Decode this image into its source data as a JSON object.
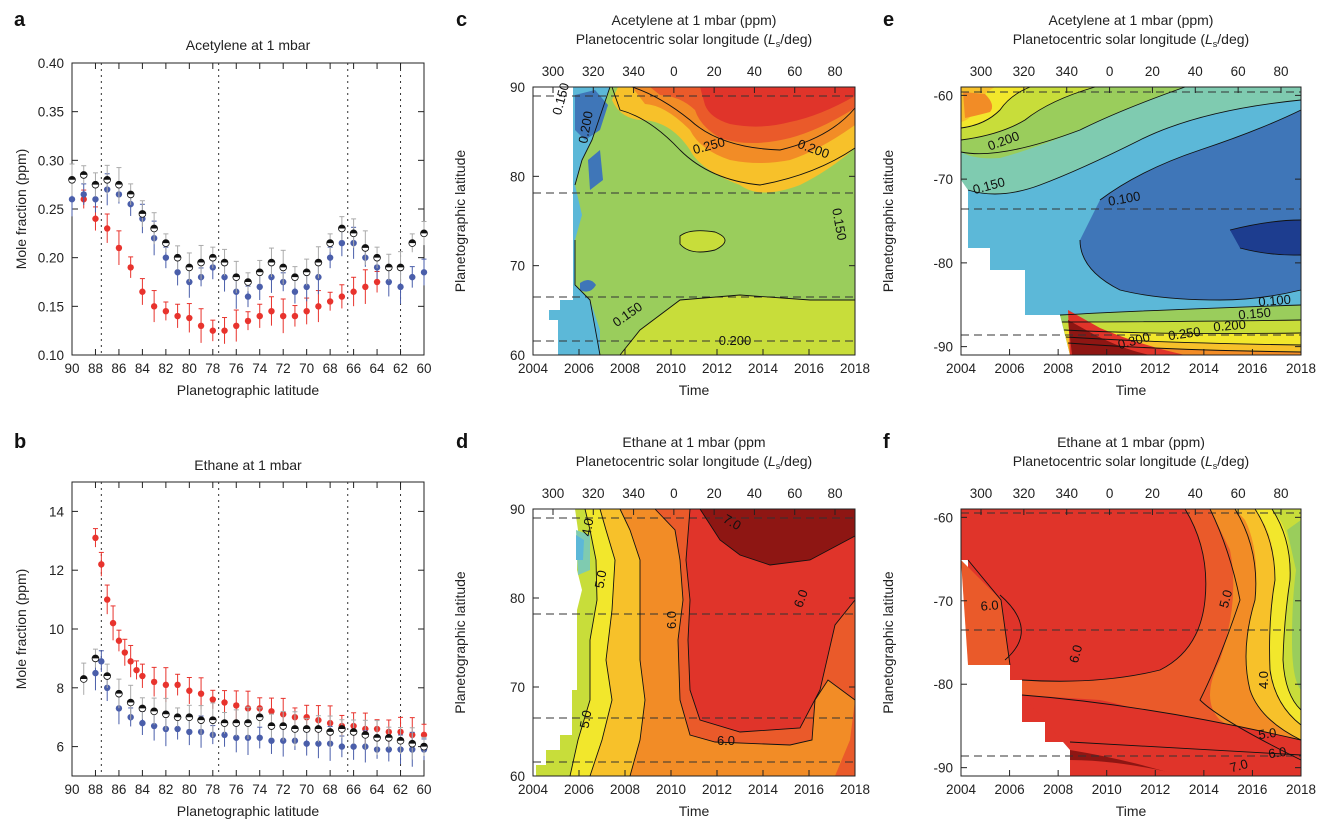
{
  "chart_data": [
    {
      "id": "a",
      "type": "scatter",
      "title": "Acetylene at 1 mbar",
      "xlabel": "Planetographic latitude",
      "ylabel": "Mole fraction (ppm)",
      "xlim": [
        90,
        60
      ],
      "ylim": [
        0.1,
        0.4
      ],
      "x_ticks": [
        "90",
        "88",
        "86",
        "84",
        "82",
        "80",
        "78",
        "76",
        "74",
        "72",
        "70",
        "68",
        "66",
        "64",
        "62",
        "60"
      ],
      "y_ticks": [
        "0.10",
        "0.15",
        "0.20",
        "0.25",
        "0.30",
        "0.35",
        "0.40"
      ],
      "vlines": [
        87.5,
        77.5,
        66.5,
        62
      ],
      "series": [
        {
          "color": "#e8332d",
          "err_color": "#e8332d",
          "marker": "circle",
          "points": [
            [
              89.0,
              0.26
            ],
            [
              88.0,
              0.24
            ],
            [
              87.0,
              0.23
            ],
            [
              86.0,
              0.21
            ],
            [
              85.0,
              0.19
            ],
            [
              84.0,
              0.165
            ],
            [
              83.0,
              0.15
            ],
            [
              82.0,
              0.145
            ],
            [
              81.0,
              0.14
            ],
            [
              80.0,
              0.138
            ],
            [
              79.0,
              0.13
            ],
            [
              78.0,
              0.125
            ],
            [
              77.0,
              0.125
            ],
            [
              76.0,
              0.13
            ],
            [
              75.0,
              0.135
            ],
            [
              74.0,
              0.14
            ],
            [
              73.0,
              0.145
            ],
            [
              72.0,
              0.14
            ],
            [
              71.0,
              0.14
            ],
            [
              70.0,
              0.145
            ],
            [
              69.0,
              0.15
            ],
            [
              68.0,
              0.155
            ],
            [
              67.0,
              0.16
            ],
            [
              66.0,
              0.165
            ],
            [
              65.0,
              0.17
            ],
            [
              64.0,
              0.175
            ]
          ]
        },
        {
          "color": "#4a5eaa",
          "err_color": "#4a5eaa",
          "marker": "circle",
          "points": [
            [
              90.0,
              0.26
            ],
            [
              89.0,
              0.265
            ],
            [
              88.0,
              0.26
            ],
            [
              87.0,
              0.27
            ],
            [
              86.0,
              0.265
            ],
            [
              85.0,
              0.255
            ],
            [
              84.0,
              0.24
            ],
            [
              83.0,
              0.22
            ],
            [
              82.0,
              0.2
            ],
            [
              81.0,
              0.185
            ],
            [
              80.0,
              0.175
            ],
            [
              79.0,
              0.18
            ],
            [
              78.0,
              0.19
            ],
            [
              77.0,
              0.18
            ],
            [
              76.0,
              0.165
            ],
            [
              75.0,
              0.16
            ],
            [
              74.0,
              0.17
            ],
            [
              73.0,
              0.18
            ],
            [
              72.0,
              0.175
            ],
            [
              71.0,
              0.165
            ],
            [
              70.0,
              0.17
            ],
            [
              69.0,
              0.18
            ],
            [
              68.0,
              0.2
            ],
            [
              67.0,
              0.215
            ],
            [
              66.0,
              0.215
            ],
            [
              65.0,
              0.2
            ],
            [
              64.0,
              0.19
            ],
            [
              63.0,
              0.175
            ],
            [
              62.0,
              0.17
            ],
            [
              61.0,
              0.18
            ],
            [
              60.0,
              0.185
            ]
          ]
        },
        {
          "color": "#111111",
          "err_color": "#aaaaaa",
          "marker": "half-circle",
          "points": [
            [
              90.0,
              0.28
            ],
            [
              89.0,
              0.285
            ],
            [
              88.0,
              0.275
            ],
            [
              87.0,
              0.28
            ],
            [
              86.0,
              0.275
            ],
            [
              85.0,
              0.265
            ],
            [
              84.0,
              0.245
            ],
            [
              83.0,
              0.23
            ],
            [
              82.0,
              0.215
            ],
            [
              81.0,
              0.2
            ],
            [
              80.0,
              0.19
            ],
            [
              79.0,
              0.195
            ],
            [
              78.0,
              0.2
            ],
            [
              77.0,
              0.195
            ],
            [
              76.0,
              0.18
            ],
            [
              75.0,
              0.175
            ],
            [
              74.0,
              0.185
            ],
            [
              73.0,
              0.195
            ],
            [
              72.0,
              0.19
            ],
            [
              71.0,
              0.18
            ],
            [
              70.0,
              0.185
            ],
            [
              69.0,
              0.195
            ],
            [
              68.0,
              0.215
            ],
            [
              67.0,
              0.23
            ],
            [
              66.0,
              0.225
            ],
            [
              65.0,
              0.21
            ],
            [
              64.0,
              0.2
            ],
            [
              63.0,
              0.19
            ],
            [
              62.0,
              0.19
            ],
            [
              61.0,
              0.215
            ],
            [
              60.0,
              0.225
            ]
          ]
        }
      ]
    },
    {
      "id": "b",
      "type": "scatter",
      "title": "Ethane at 1 mbar",
      "xlabel": "Planetographic latitude",
      "ylabel": "Mole fraction (ppm)",
      "xlim": [
        90,
        60
      ],
      "ylim": [
        5,
        15
      ],
      "x_ticks": [
        "90",
        "88",
        "86",
        "84",
        "82",
        "80",
        "78",
        "76",
        "74",
        "72",
        "70",
        "68",
        "66",
        "64",
        "62",
        "60"
      ],
      "y_ticks": [
        "6",
        "8",
        "10",
        "12",
        "14"
      ],
      "vlines": [
        87.5,
        77.5,
        66.5,
        62
      ],
      "series": [
        {
          "color": "#e8332d",
          "err_color": "#e8332d",
          "marker": "circle",
          "points": [
            [
              88.0,
              13.1
            ],
            [
              87.5,
              12.2
            ],
            [
              87.0,
              11.0
            ],
            [
              86.5,
              10.2
            ],
            [
              86.0,
              9.6
            ],
            [
              85.5,
              9.2
            ],
            [
              85.0,
              8.9
            ],
            [
              84.5,
              8.6
            ],
            [
              84.0,
              8.4
            ],
            [
              83.0,
              8.2
            ],
            [
              82.0,
              8.1
            ],
            [
              81.0,
              8.1
            ],
            [
              80.0,
              7.9
            ],
            [
              79.0,
              7.8
            ],
            [
              78.0,
              7.6
            ],
            [
              77.0,
              7.5
            ],
            [
              76.0,
              7.4
            ],
            [
              75.0,
              7.3
            ],
            [
              74.0,
              7.3
            ],
            [
              73.0,
              7.2
            ],
            [
              72.0,
              7.1
            ],
            [
              71.0,
              7.0
            ],
            [
              70.0,
              7.0
            ],
            [
              69.0,
              6.9
            ],
            [
              68.0,
              6.8
            ],
            [
              67.0,
              6.7
            ],
            [
              66.0,
              6.7
            ],
            [
              65.0,
              6.6
            ],
            [
              64.0,
              6.6
            ],
            [
              63.0,
              6.5
            ],
            [
              62.0,
              6.5
            ],
            [
              61.0,
              6.4
            ],
            [
              60.0,
              6.4
            ]
          ]
        },
        {
          "color": "#4a5eaa",
          "err_color": "#4a5eaa",
          "marker": "circle",
          "points": [
            [
              88.0,
              8.5
            ],
            [
              87.5,
              8.9
            ],
            [
              87.0,
              8.0
            ],
            [
              86.0,
              7.3
            ],
            [
              85.0,
              7.0
            ],
            [
              84.0,
              6.8
            ],
            [
              83.0,
              6.7
            ],
            [
              82.0,
              6.6
            ],
            [
              81.0,
              6.6
            ],
            [
              80.0,
              6.5
            ],
            [
              79.0,
              6.5
            ],
            [
              78.0,
              6.4
            ],
            [
              77.0,
              6.4
            ],
            [
              76.0,
              6.3
            ],
            [
              75.0,
              6.3
            ],
            [
              74.0,
              6.3
            ],
            [
              73.0,
              6.2
            ],
            [
              72.0,
              6.2
            ],
            [
              71.0,
              6.2
            ],
            [
              70.0,
              6.1
            ],
            [
              69.0,
              6.1
            ],
            [
              68.0,
              6.1
            ],
            [
              67.0,
              6.0
            ],
            [
              66.0,
              6.0
            ],
            [
              65.0,
              6.0
            ],
            [
              64.0,
              5.9
            ],
            [
              63.0,
              5.9
            ],
            [
              62.0,
              5.9
            ],
            [
              61.0,
              5.9
            ],
            [
              60.0,
              5.9
            ]
          ]
        },
        {
          "color": "#111111",
          "err_color": "#aaaaaa",
          "marker": "half-circle",
          "points": [
            [
              89.0,
              8.3
            ],
            [
              88.0,
              9.0
            ],
            [
              87.0,
              8.4
            ],
            [
              86.0,
              7.8
            ],
            [
              85.0,
              7.5
            ],
            [
              84.0,
              7.3
            ],
            [
              83.0,
              7.2
            ],
            [
              82.0,
              7.1
            ],
            [
              81.0,
              7.0
            ],
            [
              80.0,
              7.0
            ],
            [
              79.0,
              6.9
            ],
            [
              78.0,
              6.9
            ],
            [
              77.0,
              6.8
            ],
            [
              76.0,
              6.8
            ],
            [
              75.0,
              6.8
            ],
            [
              74.0,
              7.0
            ],
            [
              73.0,
              6.7
            ],
            [
              72.0,
              6.7
            ],
            [
              71.0,
              6.6
            ],
            [
              70.0,
              6.6
            ],
            [
              69.0,
              6.6
            ],
            [
              68.0,
              6.5
            ],
            [
              67.0,
              6.6
            ],
            [
              66.0,
              6.5
            ],
            [
              65.0,
              6.4
            ],
            [
              64.0,
              6.3
            ],
            [
              63.0,
              6.3
            ],
            [
              62.0,
              6.2
            ],
            [
              61.0,
              6.1
            ],
            [
              60.0,
              6.0
            ]
          ]
        }
      ]
    },
    {
      "id": "c",
      "type": "contour",
      "title_lines": [
        "Acetylene at 1 mbar (ppm)",
        "Planetocentric solar longitude (L_s/deg)"
      ],
      "xlabel": "Time",
      "ylabel": "Planetographic latitude",
      "xlim": [
        2004,
        2018
      ],
      "ylim": [
        60,
        90
      ],
      "x_ticks": [
        "2004",
        "2006",
        "2008",
        "2010",
        "2012",
        "2014",
        "2016",
        "2018"
      ],
      "y_ticks": [
        "60",
        "70",
        "80",
        "90"
      ],
      "top_ticks": [
        "300",
        "320",
        "340",
        "0",
        "20",
        "40",
        "60",
        "80"
      ],
      "hlines": [
        89,
        78,
        66.2,
        61.5
      ],
      "contour_labels": [
        "0.150",
        "0.200",
        "0.250",
        "0.200",
        "0.150",
        "0.150",
        "0.200"
      ]
    },
    {
      "id": "d",
      "type": "contour",
      "title_lines": [
        "Ethane at 1 mbar (ppm",
        "Planetocentric solar longitude (L_s/deg)"
      ],
      "xlabel": "Time",
      "ylabel": "Planetographic latitude",
      "xlim": [
        2004,
        2018
      ],
      "ylim": [
        60,
        90
      ],
      "x_ticks": [
        "2004",
        "2006",
        "2008",
        "2010",
        "2012",
        "2014",
        "2016",
        "2018"
      ],
      "y_ticks": [
        "60",
        "70",
        "80",
        "90"
      ],
      "top_ticks": [
        "300",
        "320",
        "340",
        "0",
        "20",
        "40",
        "60",
        "80"
      ],
      "hlines": [
        89,
        78,
        66.2,
        61.5
      ],
      "contour_labels": [
        "4.0",
        "5.0",
        "7.0",
        "6.0",
        "6.0",
        "5.0",
        "6.0"
      ]
    },
    {
      "id": "e",
      "type": "contour",
      "title_lines": [
        "Acetylene at 1 mbar (ppm)",
        "Planetocentric solar longitude (L_s/deg)"
      ],
      "xlabel": "Time",
      "ylabel": "Planetographic latitude",
      "xlim": [
        2004,
        2018
      ],
      "ylim": [
        -91,
        -59
      ],
      "x_ticks": [
        "2004",
        "2006",
        "2008",
        "2010",
        "2012",
        "2014",
        "2016",
        "2018"
      ],
      "y_ticks": [
        "-60",
        "-70",
        "-80",
        "-90"
      ],
      "top_ticks": [
        "300",
        "320",
        "340",
        "0",
        "20",
        "40",
        "60",
        "80"
      ],
      "hlines": [
        -60.5,
        -74,
        -88.5
      ],
      "contour_labels": [
        "0.200",
        "0.150",
        "0.100",
        "0.100",
        "0.150",
        "0.200",
        "0.250",
        "0.300"
      ]
    },
    {
      "id": "f",
      "type": "contour",
      "title_lines": [
        "Ethane at 1 mbar (ppm)",
        "Planetocentric solar longitude (L_s/deg)"
      ],
      "xlabel": "Time",
      "ylabel": "Planetographic latitude",
      "xlim": [
        2004,
        2018
      ],
      "ylim": [
        -91,
        -59
      ],
      "x_ticks": [
        "2004",
        "2006",
        "2008",
        "2010",
        "2012",
        "2014",
        "2016",
        "2018"
      ],
      "y_ticks": [
        "-60",
        "-70",
        "-80",
        "-90"
      ],
      "top_ticks": [
        "300",
        "320",
        "340",
        "0",
        "20",
        "40",
        "60",
        "80"
      ],
      "hlines": [
        -60.5,
        -74,
        -88.5
      ],
      "contour_labels": [
        "6.0",
        "6.0",
        "5.0",
        "4.0",
        "5.0",
        "6.0",
        "7.0"
      ]
    }
  ],
  "palette": {
    "dark_red": "#8e1613",
    "red": "#e0342a",
    "red_orange": "#ea5a2a",
    "orange": "#f28c26",
    "yellow_orange": "#f7c12a",
    "yellow": "#f2e72c",
    "yellow_green": "#c8dd3a",
    "green": "#9acd5c",
    "teal_green": "#7fcbb0",
    "cyan": "#5cb8d8",
    "blue": "#3f76b8",
    "navy": "#1d3d8f"
  }
}
